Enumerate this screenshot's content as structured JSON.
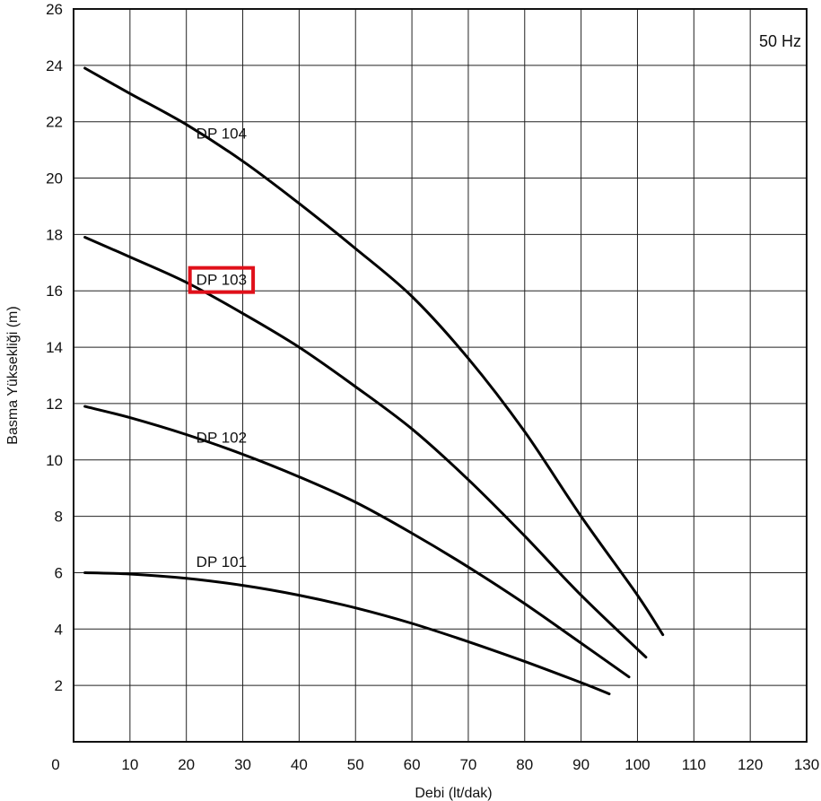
{
  "chart_data": {
    "type": "line",
    "frequency_label": "50 Hz",
    "xlabel": "Debi (lt/dak)",
    "ylabel": "Basma Yüksekliği (m)",
    "xlim": [
      0,
      130
    ],
    "ylim": [
      0,
      26
    ],
    "x_ticks": [
      0,
      10,
      20,
      30,
      40,
      50,
      60,
      70,
      80,
      90,
      100,
      110,
      120,
      130
    ],
    "y_ticks": [
      2,
      4,
      6,
      8,
      10,
      12,
      14,
      16,
      18,
      20,
      22,
      24,
      26
    ],
    "x_tick_labels": [
      "0",
      "10",
      "20",
      "30",
      "40",
      "50",
      "60",
      "70",
      "80",
      "90",
      "100",
      "110",
      "120",
      "130"
    ],
    "y_tick_labels": [
      "2",
      "4",
      "6",
      "8",
      "10",
      "12",
      "14",
      "16",
      "18",
      "20",
      "22",
      "24",
      "26"
    ],
    "grid": true,
    "highlighted_series": "DP 103",
    "series": [
      {
        "name": "DP 104",
        "x": [
          2,
          10,
          20,
          30,
          40,
          50,
          60,
          70,
          80,
          90,
          100,
          104.5
        ],
        "y": [
          23.9,
          23.0,
          21.9,
          20.6,
          19.1,
          17.5,
          15.8,
          13.6,
          11.0,
          8.0,
          5.2,
          3.8
        ]
      },
      {
        "name": "DP 103",
        "x": [
          2,
          10,
          20,
          30,
          40,
          50,
          60,
          70,
          80,
          90,
          101.5
        ],
        "y": [
          17.9,
          17.2,
          16.3,
          15.2,
          14.0,
          12.6,
          11.1,
          9.3,
          7.3,
          5.2,
          3.0
        ]
      },
      {
        "name": "DP 102",
        "x": [
          2,
          10,
          20,
          30,
          40,
          50,
          60,
          70,
          80,
          90,
          98.5
        ],
        "y": [
          11.9,
          11.5,
          10.9,
          10.2,
          9.4,
          8.5,
          7.4,
          6.2,
          4.9,
          3.5,
          2.3
        ]
      },
      {
        "name": "DP 101",
        "x": [
          2,
          10,
          20,
          30,
          40,
          50,
          60,
          70,
          80,
          90,
          95
        ],
        "y": [
          6.0,
          5.95,
          5.8,
          5.55,
          5.2,
          4.75,
          4.2,
          3.55,
          2.85,
          2.1,
          1.7
        ]
      }
    ],
    "series_label_positions": [
      {
        "name": "DP 104",
        "x": 27,
        "y": 21.6
      },
      {
        "name": "DP 103",
        "x": 27,
        "y": 16.4
      },
      {
        "name": "DP 102",
        "x": 27,
        "y": 10.8
      },
      {
        "name": "DP 101",
        "x": 27,
        "y": 6.4
      }
    ]
  }
}
